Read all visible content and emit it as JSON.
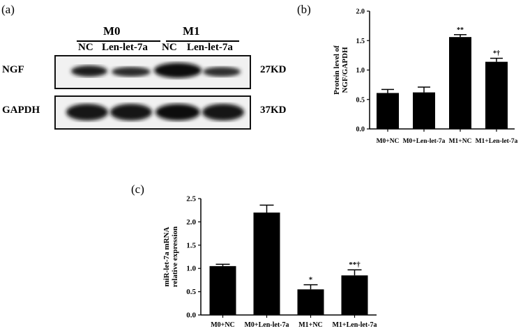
{
  "panels": {
    "a": "(a)",
    "b": "(b)",
    "c": "(c)"
  },
  "blot": {
    "group_headers": [
      "M0",
      "M1"
    ],
    "lanes": [
      "NC",
      "Len-let-7a",
      "NC",
      "Len-let-7a"
    ],
    "rows": [
      {
        "label": "NGF",
        "size": "27KD"
      },
      {
        "label": "GAPDH",
        "size": "37KD"
      }
    ]
  },
  "chart_data": [
    {
      "panel": "(b)",
      "type": "bar",
      "categories": [
        "M0+NC",
        "M0+Len-let-7a",
        "M1+NC",
        "M1+Len-let-7a"
      ],
      "values": [
        0.61,
        0.62,
        1.56,
        1.14
      ],
      "errors": [
        0.06,
        0.09,
        0.04,
        0.06
      ],
      "annotations": [
        "",
        "",
        "**",
        "*†"
      ],
      "ylabel": "Protein level of NGF/GAPDH",
      "ylim": [
        0,
        2.0
      ],
      "yticks": [
        "0.0",
        "0.5",
        "1.0",
        "1.5",
        "2.0"
      ]
    },
    {
      "panel": "(c)",
      "type": "bar",
      "categories": [
        "M0+NC",
        "M0+Len-let-7a",
        "M1+NC",
        "M1+Len-let-7a"
      ],
      "values": [
        1.05,
        2.2,
        0.55,
        0.85
      ],
      "errors": [
        0.04,
        0.16,
        0.1,
        0.12
      ],
      "annotations": [
        "",
        "",
        "*",
        "**†"
      ],
      "ylabel": "miR-let-7a mRNA relative expression",
      "ylim": [
        0,
        2.5
      ],
      "yticks": [
        "0.0",
        "0.5",
        "1.0",
        "1.5",
        "2.0",
        "2.5"
      ]
    }
  ]
}
